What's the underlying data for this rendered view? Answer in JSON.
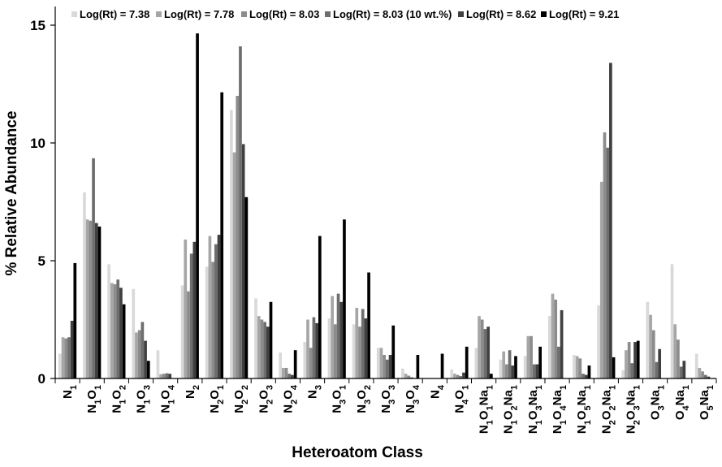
{
  "chart_data": {
    "type": "bar",
    "xlabel": "Heteroatom Class",
    "ylabel": "% Relative Abundance",
    "ylim": [
      0,
      15
    ],
    "yticks": [
      "0",
      "5",
      "10",
      "15"
    ],
    "grid": false,
    "legend_position": "top",
    "categories": [
      {
        "base": [
          [
            "N",
            "1"
          ]
        ]
      },
      {
        "base": [
          [
            "N",
            "1"
          ],
          [
            "O",
            "1"
          ]
        ]
      },
      {
        "base": [
          [
            "N",
            "1"
          ],
          [
            "O",
            "2"
          ]
        ]
      },
      {
        "base": [
          [
            "N",
            "1"
          ],
          [
            "O",
            "3"
          ]
        ]
      },
      {
        "base": [
          [
            "N",
            "1"
          ],
          [
            "O",
            "4"
          ]
        ]
      },
      {
        "base": [
          [
            "N",
            "2"
          ]
        ]
      },
      {
        "base": [
          [
            "N",
            "2"
          ],
          [
            "O",
            "1"
          ]
        ]
      },
      {
        "base": [
          [
            "N",
            "2"
          ],
          [
            "O",
            "2"
          ]
        ]
      },
      {
        "base": [
          [
            "N",
            "2"
          ],
          [
            "O",
            "3"
          ]
        ]
      },
      {
        "base": [
          [
            "N",
            "2"
          ],
          [
            "O",
            "4"
          ]
        ]
      },
      {
        "base": [
          [
            "N",
            "3"
          ]
        ]
      },
      {
        "base": [
          [
            "N",
            "3"
          ],
          [
            "O",
            "1"
          ]
        ]
      },
      {
        "base": [
          [
            "N",
            "3"
          ],
          [
            "O",
            "2"
          ]
        ]
      },
      {
        "base": [
          [
            "N",
            "3"
          ],
          [
            "O",
            "3"
          ]
        ]
      },
      {
        "base": [
          [
            "N",
            "3"
          ],
          [
            "O",
            "4"
          ]
        ]
      },
      {
        "base": [
          [
            "N",
            "4"
          ]
        ]
      },
      {
        "base": [
          [
            "N",
            "4"
          ],
          [
            "O",
            "1"
          ]
        ]
      },
      {
        "base": [
          [
            "N",
            "1"
          ],
          [
            "O",
            "1"
          ],
          [
            "Na",
            "1"
          ]
        ]
      },
      {
        "base": [
          [
            "N",
            "1"
          ],
          [
            "O",
            "2"
          ],
          [
            "Na",
            "1"
          ]
        ]
      },
      {
        "base": [
          [
            "N",
            "1"
          ],
          [
            "O",
            "3"
          ],
          [
            "Na",
            "1"
          ]
        ]
      },
      {
        "base": [
          [
            "N",
            "1"
          ],
          [
            "O",
            "4"
          ],
          [
            "Na",
            "1"
          ]
        ]
      },
      {
        "base": [
          [
            "N",
            "1"
          ],
          [
            "O",
            "5"
          ],
          [
            "Na",
            "1"
          ]
        ]
      },
      {
        "base": [
          [
            "N",
            "2"
          ],
          [
            "O",
            "2"
          ],
          [
            "Na",
            "1"
          ]
        ]
      },
      {
        "base": [
          [
            "N",
            "2"
          ],
          [
            "O",
            "3"
          ],
          [
            "Na",
            "1"
          ]
        ]
      },
      {
        "base": [
          [
            "O",
            "3"
          ],
          [
            "Na",
            "1"
          ]
        ]
      },
      {
        "base": [
          [
            "O",
            "4"
          ],
          [
            "Na",
            "1"
          ]
        ]
      },
      {
        "base": [
          [
            "O",
            "5"
          ],
          [
            "Na",
            "1"
          ]
        ]
      }
    ],
    "series": [
      {
        "name": "Log(Rt) = 7.38",
        "color": "#d9d9d9",
        "values": [
          1.05,
          7.9,
          4.85,
          3.8,
          1.2,
          3.95,
          4.75,
          11.4,
          3.4,
          1.1,
          1.55,
          2.55,
          2.3,
          1.3,
          0.42,
          0.0,
          0.38,
          1.3,
          0.8,
          0.95,
          2.65,
          1.0,
          3.1,
          0.35,
          3.25,
          4.85,
          1.05
        ]
      },
      {
        "name": "Log(Rt) = 7.78",
        "color": "#a6a6a6",
        "values": [
          1.75,
          6.75,
          4.05,
          1.95,
          0.18,
          5.9,
          6.05,
          9.6,
          2.65,
          0.45,
          2.5,
          3.5,
          3.0,
          1.3,
          0.2,
          0.0,
          0.2,
          2.65,
          1.15,
          1.8,
          3.6,
          0.95,
          8.35,
          1.2,
          2.7,
          2.3,
          0.45
        ]
      },
      {
        "name": "Log(Rt) = 8.03",
        "color": "#8c8c8c",
        "values": [
          1.7,
          6.7,
          4.0,
          2.05,
          0.2,
          3.7,
          4.95,
          12.0,
          2.5,
          0.45,
          1.3,
          2.3,
          2.2,
          1.0,
          0.12,
          0.0,
          0.15,
          2.5,
          0.6,
          1.8,
          3.35,
          0.85,
          10.45,
          1.55,
          2.05,
          1.65,
          0.3
        ]
      },
      {
        "name": "Log(Rt) = 8.03 (10 wt.%)",
        "color": "#6e6e6e",
        "values": [
          1.75,
          9.35,
          4.2,
          2.4,
          0.22,
          5.3,
          5.7,
          14.1,
          2.4,
          0.2,
          2.6,
          3.6,
          2.95,
          0.8,
          0.05,
          0.0,
          0.1,
          2.1,
          1.2,
          0.6,
          1.35,
          0.2,
          9.8,
          0.65,
          0.7,
          0.5,
          0.15
        ]
      },
      {
        "name": "Log(Rt) = 8.62",
        "color": "#404040",
        "values": [
          2.45,
          6.6,
          3.85,
          1.6,
          0.2,
          5.8,
          6.1,
          9.95,
          2.2,
          0.15,
          2.35,
          3.25,
          2.55,
          1.0,
          0.0,
          0.0,
          0.25,
          2.2,
          0.55,
          0.6,
          2.9,
          0.15,
          13.4,
          1.55,
          1.25,
          0.75,
          0.08
        ]
      },
      {
        "name": "Log(Rt) = 9.21",
        "color": "#000000",
        "values": [
          4.9,
          6.45,
          3.15,
          0.75,
          0.0,
          14.65,
          12.15,
          7.7,
          3.25,
          1.2,
          6.05,
          6.75,
          4.5,
          2.25,
          1.0,
          1.05,
          1.35,
          0.2,
          0.95,
          1.35,
          0.0,
          0.55,
          0.9,
          1.6,
          0.0,
          0.0,
          0.0
        ]
      }
    ]
  }
}
